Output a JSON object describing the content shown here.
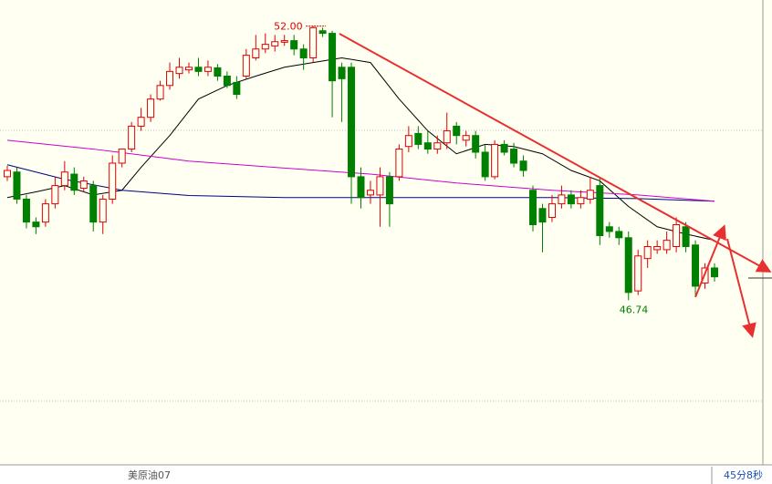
{
  "chart_data": {
    "type": "candlestick",
    "ylim": [
      43.6,
      52.5
    ],
    "up_color": "#e00000",
    "down_color": "#008000",
    "candles": {
      "open": [
        49.11,
        49.2,
        48.68,
        48.24,
        48.24,
        48.59,
        48.94,
        49.16,
        48.89,
        48.94,
        48.24,
        48.68,
        49.37,
        49.64,
        50.08,
        50.25,
        50.6,
        50.86,
        51.09,
        51.16,
        51.21,
        51.13,
        51.2,
        51.04,
        50.92,
        51.04,
        51.39,
        51.56,
        51.62,
        51.69,
        51.72,
        51.56,
        51.39,
        51.91,
        51.86,
        51.21,
        51.21,
        49.11,
        48.76,
        48.76,
        49.11,
        49.11,
        49.69,
        49.94,
        49.76,
        49.64,
        49.76,
        50.08,
        49.81,
        49.9,
        49.58,
        49.11,
        49.73,
        49.64,
        49.41,
        48.85,
        48.5,
        48.33,
        48.59,
        48.76,
        48.59,
        48.68,
        48.94,
        48.15,
        48.06,
        47.94,
        46.92,
        47.54,
        47.71,
        47.71,
        47.77,
        48.15,
        47.8,
        47.07,
        47.36
      ],
      "high": [
        49.32,
        49.29,
        48.76,
        48.33,
        48.68,
        49.11,
        49.41,
        49.29,
        49.11,
        49.03,
        48.76,
        49.52,
        49.64,
        50.16,
        50.43,
        50.69,
        50.95,
        51.3,
        51.39,
        51.3,
        51.39,
        51.34,
        51.27,
        51.13,
        51.04,
        51.56,
        51.83,
        51.86,
        51.83,
        51.83,
        51.83,
        51.65,
        52.0,
        51.97,
        51.91,
        51.3,
        51.3,
        49.29,
        49.03,
        49.29,
        49.2,
        49.73,
        50.08,
        50.08,
        49.99,
        49.9,
        50.34,
        50.16,
        49.99,
        49.99,
        49.73,
        49.81,
        49.81,
        49.76,
        49.52,
        48.94,
        48.59,
        48.76,
        48.94,
        48.85,
        48.85,
        49.11,
        49.11,
        48.24,
        48.15,
        48.06,
        47.71,
        47.89,
        47.89,
        48.06,
        48.33,
        48.24,
        47.89,
        47.45,
        47.45
      ],
      "low": [
        49.03,
        48.59,
        48.12,
        48.01,
        48.15,
        48.5,
        48.85,
        48.76,
        48.82,
        48.06,
        48.01,
        48.59,
        49.29,
        49.58,
        49.99,
        50.16,
        50.57,
        50.78,
        50.99,
        51.09,
        51.04,
        51.04,
        50.95,
        50.81,
        50.6,
        50.99,
        51.34,
        51.48,
        51.51,
        51.62,
        51.44,
        51.16,
        51.3,
        51.79,
        50.25,
        50.16,
        48.59,
        48.5,
        48.59,
        48.15,
        48.15,
        49.03,
        49.58,
        49.64,
        49.55,
        49.55,
        49.64,
        49.73,
        49.69,
        49.46,
        49.03,
        49.06,
        49.52,
        49.29,
        49.11,
        48.06,
        47.66,
        48.24,
        48.5,
        48.5,
        48.5,
        48.59,
        47.8,
        47.94,
        47.8,
        46.74,
        46.84,
        47.36,
        47.63,
        47.63,
        47.66,
        47.66,
        46.84,
        46.96,
        47.1
      ],
      "close": [
        49.23,
        48.68,
        48.24,
        48.15,
        48.59,
        48.94,
        49.2,
        48.85,
        49.03,
        48.24,
        48.68,
        49.37,
        49.64,
        50.08,
        50.25,
        50.6,
        50.86,
        51.13,
        51.21,
        51.21,
        51.13,
        51.21,
        51.04,
        50.86,
        50.69,
        51.44,
        51.56,
        51.65,
        51.7,
        51.72,
        51.56,
        51.39,
        51.97,
        51.86,
        50.95,
        50.99,
        49.11,
        48.71,
        48.85,
        49.11,
        48.59,
        49.64,
        49.9,
        49.73,
        49.64,
        49.76,
        49.99,
        49.9,
        49.9,
        49.58,
        49.11,
        49.73,
        49.58,
        49.37,
        49.23,
        48.19,
        48.24,
        48.59,
        48.76,
        48.59,
        48.71,
        48.85,
        47.98,
        48.06,
        47.94,
        46.89,
        47.59,
        47.77,
        47.77,
        47.89,
        48.19,
        47.77,
        47.01,
        47.36,
        47.19
      ]
    },
    "lines": [
      {
        "color": "#000000",
        "x": [
          0,
          3,
          6,
          9,
          12,
          14,
          17,
          20,
          23,
          26,
          29,
          32,
          35,
          38,
          41,
          44,
          47,
          50,
          53,
          56,
          59,
          62,
          65,
          68,
          71,
          74
        ],
        "values": [
          48.71,
          48.82,
          48.94,
          48.76,
          48.85,
          49.29,
          49.9,
          50.6,
          50.86,
          51.04,
          51.21,
          51.3,
          51.39,
          51.3,
          50.6,
          49.99,
          49.55,
          49.73,
          49.69,
          49.55,
          49.23,
          49.03,
          48.54,
          48.15,
          48.01,
          47.89
        ]
      },
      {
        "color": "#000080",
        "x": [
          0,
          6,
          12,
          19,
          29,
          38,
          47,
          57,
          66,
          74
        ],
        "values": [
          49.34,
          49.06,
          48.85,
          48.75,
          48.71,
          48.71,
          48.71,
          48.71,
          48.69,
          48.64
        ]
      },
      {
        "color": "#cc00cc",
        "x": [
          0,
          9,
          19,
          28,
          38,
          47,
          57,
          66,
          74
        ],
        "values": [
          49.81,
          49.64,
          49.41,
          49.29,
          49.16,
          48.99,
          48.85,
          48.76,
          48.64
        ]
      }
    ],
    "annotations": [
      {
        "candle": 32,
        "value": 52.0,
        "label": "52.00",
        "color": "#e00000"
      },
      {
        "candle": 65,
        "value": 46.74,
        "label": "46.74",
        "color": "#008000"
      }
    ]
  },
  "footer": {
    "symbol": "美原油07",
    "timer": "45分8秒"
  }
}
